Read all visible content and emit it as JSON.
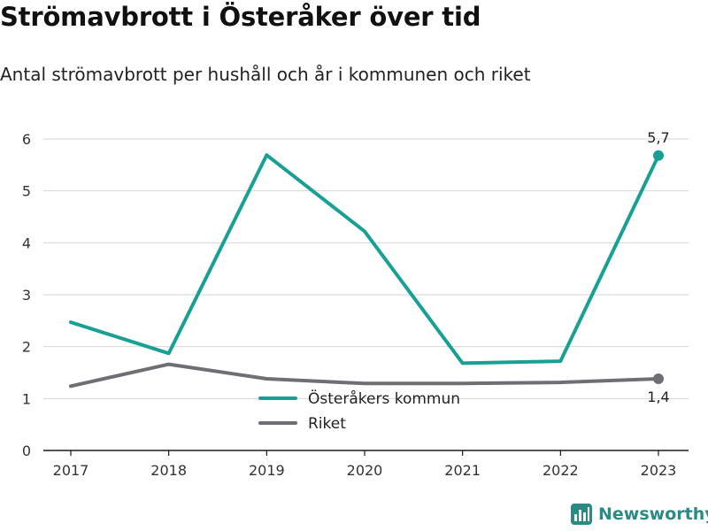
{
  "title": "Strömavbrott i Österåker över tid",
  "subtitle": "Antal strömavbrott per hushåll och år i kommunen och riket",
  "brand": {
    "name": "Newsworthy",
    "color": "#2a8a85"
  },
  "chart_data": {
    "type": "line",
    "title": "Strömavbrott i Österåker över tid",
    "subtitle": "Antal strömavbrott per hushåll och år i kommunen och riket",
    "xlabel": "",
    "ylabel": "",
    "x": [
      "2017",
      "2018",
      "2019",
      "2020",
      "2021",
      "2022",
      "2023"
    ],
    "ylim": [
      0,
      6
    ],
    "yticks": [
      "0",
      "1",
      "2",
      "3",
      "4",
      "5",
      "6"
    ],
    "grid": true,
    "legend_position": "bottom-center",
    "series": [
      {
        "name": "Österåkers kommun",
        "color": "#18a095",
        "values": [
          2.47,
          1.87,
          5.69,
          4.22,
          1.68,
          1.72,
          5.68
        ],
        "end_label": "5,7"
      },
      {
        "name": "Riket",
        "color": "#6e6e74",
        "values": [
          1.24,
          1.66,
          1.38,
          1.29,
          1.29,
          1.31,
          1.38
        ],
        "end_label": "1,4"
      }
    ]
  }
}
